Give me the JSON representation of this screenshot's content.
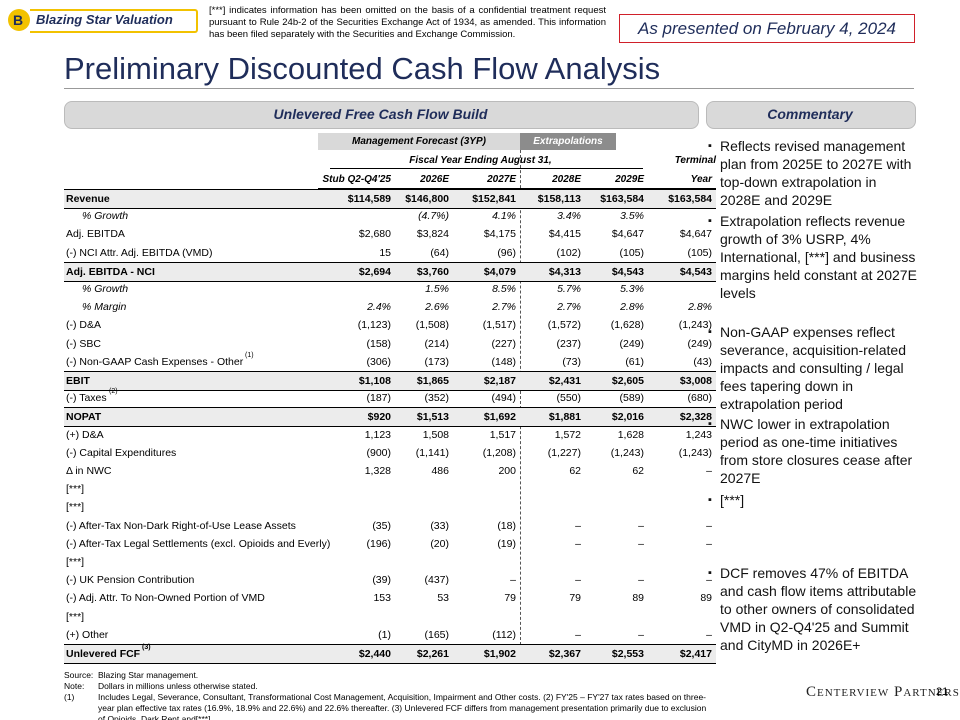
{
  "header": {
    "badge": "B",
    "badge_title": "Blazing Star Valuation",
    "notice": "[***] indicates information has been omitted on the basis of a confidential treatment request pursuant to Rule 24b-2 of the Securities Exchange Act of 1934, as amended. This information has been filed separately with the Securities and Exchange Commission.",
    "date": "As presented on February 4, 2024",
    "title": "Preliminary Discounted Cash Flow Analysis"
  },
  "left_panel": {
    "title": "Unlevered Free Cash Flow Build"
  },
  "right_panel": {
    "title": "Commentary",
    "bullets": [
      "Reflects revised management plan from 2025E to 2027E with top-down extrapolation in 2028E and 2029E",
      "Extrapolation reflects revenue growth of 3% USRP, 4% International, [***] and business margins held constant at 2027E levels",
      "Non-GAAP expenses reflect severance, acquisition-related impacts and consulting / legal fees tapering down in extrapolation period",
      "NWC lower in extrapolation period as one-time initiatives from store closures cease after 2027E",
      "[***]",
      "DCF removes 47% of EBITDA and cash flow items attributable to other owners of consolidated VMD in Q2-Q4'25 and Summit and CityMD in 2026E+"
    ]
  },
  "table": {
    "group_headers": [
      "Management Forecast (3YP)",
      "Extrapolations"
    ],
    "period_header": "Fiscal Year Ending August 31,",
    "terminal_header": "Terminal",
    "columns": [
      "Stub Q2-Q4'25",
      "2026E",
      "2027E",
      "2028E",
      "2029E",
      "Year"
    ],
    "rows": [
      {
        "label": "Revenue",
        "cells": [
          "$114,589",
          "$146,800",
          "$152,841",
          "$158,113",
          "$163,584",
          "$163,584"
        ]
      },
      {
        "label": "% Growth",
        "cells": [
          null,
          "(4.7%)",
          "4.1%",
          "3.4%",
          "3.5%",
          null
        ]
      },
      {
        "label": "Adj. EBITDA",
        "cells": [
          "$2,680",
          "$3,824",
          "$4,175",
          "$4,415",
          "$4,647",
          "$4,647"
        ]
      },
      {
        "label": "(-) NCI Attr. Adj. EBITDA (VMD)",
        "cells": [
          "15",
          "(64)",
          "(96)",
          "(102)",
          "(105)",
          "(105)"
        ]
      },
      {
        "label": "Adj. EBITDA - NCI",
        "cells": [
          "$2,694",
          "$3,760",
          "$4,079",
          "$4,313",
          "$4,543",
          "$4,543"
        ]
      },
      {
        "label": "% Growth",
        "cells": [
          null,
          "1.5%",
          "8.5%",
          "5.7%",
          "5.3%",
          null
        ]
      },
      {
        "label": "% Margin",
        "cells": [
          "2.4%",
          "2.6%",
          "2.7%",
          "2.7%",
          "2.8%",
          "2.8%"
        ]
      },
      {
        "label": "(-) D&A",
        "cells": [
          "(1,123)",
          "(1,508)",
          "(1,517)",
          "(1,572)",
          "(1,628)",
          "(1,243)"
        ]
      },
      {
        "label": "(-) SBC",
        "cells": [
          "(158)",
          "(214)",
          "(227)",
          "(237)",
          "(249)",
          "(249)"
        ]
      },
      {
        "label": "(-) Non-GAAP Cash Expenses - Other",
        "sup": "(1)",
        "cells": [
          "(306)",
          "(173)",
          "(148)",
          "(73)",
          "(61)",
          "(43)"
        ]
      },
      {
        "label": "EBIT",
        "cells": [
          "$1,108",
          "$1,865",
          "$2,187",
          "$2,431",
          "$2,605",
          "$3,008"
        ]
      },
      {
        "label": "(-) Taxes",
        "sup": "(2)",
        "cells": [
          "(187)",
          "(352)",
          "(494)",
          "(550)",
          "(589)",
          "(680)"
        ]
      },
      {
        "label": "NOPAT",
        "cells": [
          "$920",
          "$1,513",
          "$1,692",
          "$1,881",
          "$2,016",
          "$2,328"
        ]
      },
      {
        "label": "(+) D&A",
        "cells": [
          "1,123",
          "1,508",
          "1,517",
          "1,572",
          "1,628",
          "1,243"
        ]
      },
      {
        "label": "(-) Capital Expenditures",
        "cells": [
          "(900)",
          "(1,141)",
          "(1,208)",
          "(1,227)",
          "(1,243)",
          "(1,243)"
        ]
      },
      {
        "label": "Δ in NWC",
        "cells": [
          "1,328",
          "486",
          "200",
          "62",
          "62",
          "–"
        ]
      },
      {
        "label": "[***]",
        "cells": [
          null,
          null,
          null,
          null,
          null,
          null
        ]
      },
      {
        "label": "[***]",
        "cells": [
          null,
          null,
          null,
          null,
          null,
          null
        ]
      },
      {
        "label": "(-) After-Tax Non-Dark Right-of-Use Lease Assets",
        "cells": [
          "(35)",
          "(33)",
          "(18)",
          "–",
          "–",
          "–"
        ]
      },
      {
        "label": "(-) After-Tax Legal Settlements (excl. Opioids and Everly)",
        "cells": [
          "(196)",
          "(20)",
          "(19)",
          "–",
          "–",
          "–"
        ]
      },
      {
        "label": "[***]",
        "cells": [
          null,
          null,
          null,
          null,
          null,
          null
        ]
      },
      {
        "label": "(-) UK Pension Contribution",
        "cells": [
          "(39)",
          "(437)",
          "–",
          "–",
          "–",
          "–"
        ]
      },
      {
        "label": "(-) Adj. Attr. To Non-Owned Portion of VMD",
        "cells": [
          "153",
          "53",
          "79",
          "79",
          "89",
          "89"
        ]
      },
      {
        "label": "[***]",
        "cells": [
          null,
          null,
          null,
          null,
          null,
          null
        ]
      },
      {
        "label": "(+) Other",
        "cells": [
          "(1)",
          "(165)",
          "(112)",
          "–",
          "–",
          "–"
        ]
      },
      {
        "label": "Unlevered FCF",
        "sup": "(3)",
        "cells": [
          "$2,440",
          "$2,261",
          "$1,902",
          "$2,367",
          "$2,553",
          "$2,417"
        ]
      }
    ]
  },
  "footnotes": [
    {
      "key": "Source:",
      "text": "Blazing Star management."
    },
    {
      "key": "Note:",
      "text": "Dollars in millions unless otherwise stated."
    },
    {
      "key": "(1)",
      "text": "Includes Legal, Severance, Consultant, Transformational Cost Management, Acquisition, Impairment and Other costs. (2) FY'25 – FY'27 tax rates based on three-year plan effective tax rates (16.9%, 18.9% and 22.6%) and 22.6% thereafter. (3) Unlevered FCF differs from management presentation primarily due to exclusion of Opioids, Dark Rent and[***]."
    }
  ],
  "footer": {
    "logo": "Centerview Partners",
    "page": "21"
  }
}
